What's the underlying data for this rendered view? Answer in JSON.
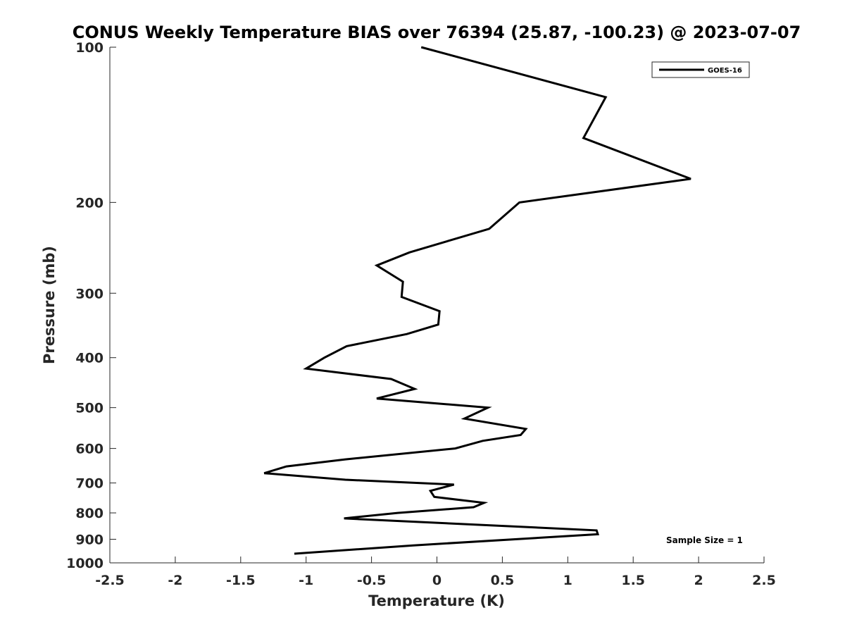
{
  "chart_data": {
    "type": "line",
    "title": "CONUS Weekly Temperature BIAS over 76394 (25.87, -100.23) @ 2023-07-07",
    "xlabel": "Temperature (K)",
    "ylabel": "Pressure (mb)",
    "xlim": [
      -2.5,
      2.5
    ],
    "ylim": [
      100,
      1000
    ],
    "y_scale": "log",
    "y_reversed": true,
    "grid": false,
    "legend_position": "top-right",
    "x_ticks": [
      -2.5,
      -2,
      -1.5,
      -1,
      -0.5,
      0,
      0.5,
      1,
      1.5,
      2,
      2.5
    ],
    "x_tick_labels": [
      "-2.5",
      "-2",
      "-1.5",
      "-1",
      "-0.5",
      "0",
      "0.5",
      "1",
      "1.5",
      "2",
      "2.5"
    ],
    "y_ticks": [
      100,
      200,
      300,
      400,
      500,
      600,
      700,
      800,
      900,
      1000
    ],
    "y_tick_labels": [
      "100",
      "200",
      "300",
      "400",
      "500",
      "600",
      "700",
      "800",
      "900",
      "1000"
    ],
    "annotation": "Sample Size = 1",
    "series": [
      {
        "name": "GOES-16",
        "color": "#000000",
        "points": [
          {
            "x": -0.12,
            "p": 100
          },
          {
            "x": 1.29,
            "p": 125
          },
          {
            "x": 1.12,
            "p": 150
          },
          {
            "x": 1.94,
            "p": 180
          },
          {
            "x": 0.63,
            "p": 200
          },
          {
            "x": 0.4,
            "p": 225
          },
          {
            "x": -0.21,
            "p": 250
          },
          {
            "x": -0.46,
            "p": 265
          },
          {
            "x": -0.26,
            "p": 285
          },
          {
            "x": -0.27,
            "p": 305
          },
          {
            "x": 0.02,
            "p": 325
          },
          {
            "x": 0.01,
            "p": 345
          },
          {
            "x": -0.23,
            "p": 360
          },
          {
            "x": -0.69,
            "p": 380
          },
          {
            "x": -0.86,
            "p": 400
          },
          {
            "x": -1.0,
            "p": 420
          },
          {
            "x": -0.35,
            "p": 440
          },
          {
            "x": -0.17,
            "p": 460
          },
          {
            "x": -0.46,
            "p": 480
          },
          {
            "x": 0.39,
            "p": 500
          },
          {
            "x": 0.21,
            "p": 525
          },
          {
            "x": 0.68,
            "p": 550
          },
          {
            "x": 0.64,
            "p": 565
          },
          {
            "x": 0.35,
            "p": 580
          },
          {
            "x": 0.14,
            "p": 600
          },
          {
            "x": -0.7,
            "p": 630
          },
          {
            "x": -1.15,
            "p": 650
          },
          {
            "x": -1.32,
            "p": 670
          },
          {
            "x": -0.7,
            "p": 690
          },
          {
            "x": 0.13,
            "p": 705
          },
          {
            "x": -0.05,
            "p": 725
          },
          {
            "x": -0.02,
            "p": 745
          },
          {
            "x": 0.36,
            "p": 765
          },
          {
            "x": 0.28,
            "p": 780
          },
          {
            "x": -0.3,
            "p": 800
          },
          {
            "x": -0.71,
            "p": 820
          },
          {
            "x": 1.22,
            "p": 865
          },
          {
            "x": 1.23,
            "p": 880
          },
          {
            "x": -0.18,
            "p": 925
          },
          {
            "x": -1.09,
            "p": 960
          }
        ]
      }
    ]
  }
}
